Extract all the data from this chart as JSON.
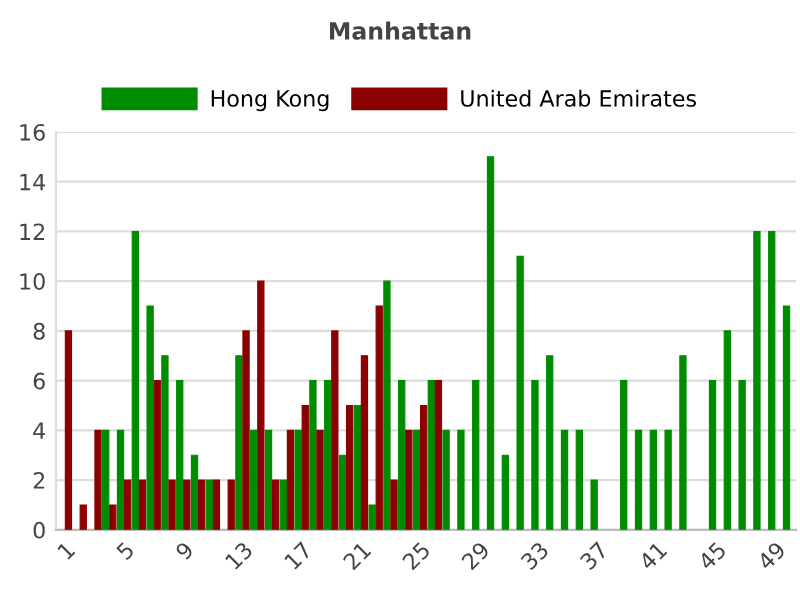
{
  "chart_data": {
    "type": "bar",
    "title": "Manhattan",
    "categories": [
      "1",
      null,
      null,
      null,
      "5",
      null,
      null,
      null,
      "9",
      null,
      null,
      null,
      "13",
      null,
      null,
      null,
      "17",
      null,
      null,
      null,
      "21",
      null,
      null,
      null,
      "25",
      null,
      null,
      null,
      "29",
      null,
      null,
      null,
      "33",
      null,
      null,
      null,
      "37",
      null,
      null,
      null,
      "41",
      null,
      null,
      null,
      "45",
      null,
      null,
      null,
      "49",
      null
    ],
    "series": [
      {
        "name": "Hong Kong",
        "color": "#008c00",
        "values": [
          null,
          null,
          null,
          4,
          4,
          12,
          9,
          7,
          6,
          3,
          2,
          null,
          7,
          4,
          4,
          2,
          4,
          6,
          6,
          3,
          5,
          1,
          10,
          6,
          4,
          6,
          4,
          4,
          6,
          15,
          3,
          11,
          6,
          7,
          4,
          4,
          2,
          null,
          6,
          4,
          4,
          4,
          7,
          null,
          6,
          8,
          6,
          12,
          12,
          9
        ]
      },
      {
        "name": "United Arab Emirates",
        "color": "#8b0000",
        "values": [
          8,
          1,
          4,
          1,
          2,
          2,
          6,
          2,
          2,
          2,
          2,
          2,
          8,
          10,
          2,
          4,
          5,
          4,
          8,
          5,
          7,
          9,
          2,
          4,
          5,
          6,
          null,
          null,
          null,
          null,
          null,
          null,
          null,
          null,
          null,
          null,
          null,
          null,
          null,
          null,
          null,
          null,
          null,
          null,
          null,
          null,
          null,
          null,
          null,
          null
        ]
      }
    ],
    "ylim": [
      0,
      16
    ],
    "yticks": [
      0,
      2,
      4,
      6,
      8,
      10,
      12,
      14,
      16
    ],
    "grid": "y",
    "legend": "top"
  }
}
